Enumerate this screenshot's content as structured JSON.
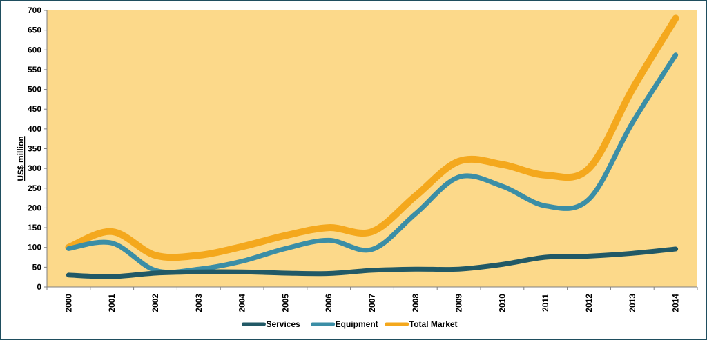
{
  "chart_data": {
    "type": "line",
    "title": "",
    "xlabel": "",
    "ylabel": "US$ million",
    "categories": [
      "2000",
      "2001",
      "2002",
      "2003",
      "2004",
      "2005",
      "2006",
      "2007",
      "2008",
      "2009",
      "2010",
      "2011",
      "2012",
      "2013",
      "2014"
    ],
    "yticks": [
      0,
      50,
      100,
      150,
      200,
      250,
      300,
      350,
      400,
      450,
      500,
      550,
      600,
      650,
      700
    ],
    "ylim": [
      0,
      700
    ],
    "grid": false,
    "legend_position": "bottom",
    "plot_background": "#fcd98a",
    "series": [
      {
        "name": "Services",
        "color": "#215966",
        "values": [
          30,
          26,
          35,
          38,
          38,
          35,
          34,
          42,
          45,
          45,
          57,
          75,
          78,
          85,
          96
        ]
      },
      {
        "name": "Equipment",
        "color": "#3b8ea6",
        "values": [
          97,
          111,
          42,
          45,
          65,
          97,
          118,
          95,
          185,
          278,
          255,
          205,
          222,
          415,
          587
        ]
      },
      {
        "name": "Total Market",
        "color": "#f4a81d",
        "values": [
          100,
          140,
          80,
          80,
          102,
          130,
          150,
          140,
          230,
          318,
          310,
          283,
          300,
          500,
          680
        ]
      }
    ]
  }
}
